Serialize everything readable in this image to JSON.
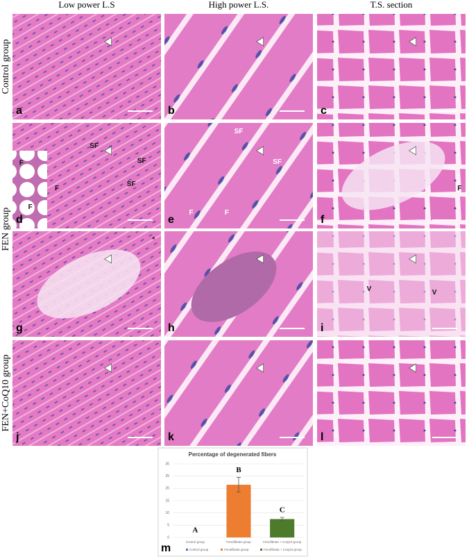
{
  "columns": [
    "Low power L.S",
    "High power L.S.",
    "T.S. section"
  ],
  "rows": [
    "Control group",
    "FEN group",
    "FEN+CoQ10 group"
  ],
  "panels": [
    {
      "letter": "a",
      "annotations": []
    },
    {
      "letter": "b",
      "annotations": []
    },
    {
      "letter": "c",
      "annotations": []
    },
    {
      "letter": "d",
      "annotations": [
        "SF",
        "SF",
        "SF",
        "F",
        "F",
        "F"
      ]
    },
    {
      "letter": "e",
      "annotations": [
        "SF",
        "SF",
        "F",
        "F"
      ]
    },
    {
      "letter": "f",
      "annotations": [
        "F"
      ]
    },
    {
      "letter": "g",
      "annotations": [
        "*"
      ]
    },
    {
      "letter": "h",
      "annotations": []
    },
    {
      "letter": "i",
      "annotations": [
        "V",
        "V"
      ]
    },
    {
      "letter": "j",
      "annotations": []
    },
    {
      "letter": "k",
      "annotations": []
    },
    {
      "letter": "l",
      "annotations": []
    }
  ],
  "chart_data": {
    "type": "bar",
    "title": "Percentage of degenerated fibers",
    "categories": [
      "Control group",
      "Fenofibrate group",
      "Fenofibrate + CoQ10 group"
    ],
    "values": [
      0,
      21.5,
      7.5
    ],
    "errors": [
      0,
      3,
      0.7
    ],
    "colors": [
      "#4472c4",
      "#ed7d31",
      "#4e7a2c"
    ],
    "letters": [
      "A",
      "B",
      "C"
    ],
    "panel_letter": "m",
    "ylim": [
      0,
      30
    ],
    "yticks": [
      0,
      5,
      10,
      15,
      20,
      25,
      30
    ],
    "grid": true,
    "legend": "bottom"
  }
}
